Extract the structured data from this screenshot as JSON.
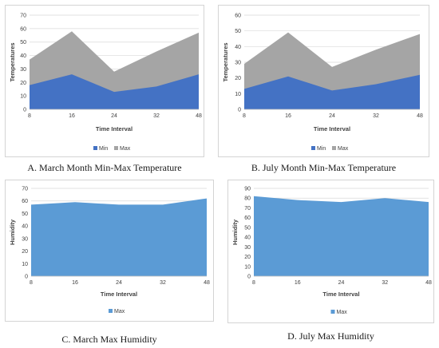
{
  "colors": {
    "min": "#4472c4",
    "max": "#a5a5a5",
    "humidity": "#5b9bd5"
  },
  "chart_data": [
    {
      "type": "area",
      "caption": "A. March Month Min-Max Temperature",
      "x": [
        8,
        16,
        24,
        32,
        48
      ],
      "xlabel": "Time Interval",
      "ylabel": "Temperatures",
      "ylim": [
        0,
        70
      ],
      "yticks": [
        0,
        10,
        20,
        30,
        40,
        50,
        60,
        70
      ],
      "stacked": false,
      "series": [
        {
          "name": "Max",
          "values": [
            37,
            58,
            28,
            43,
            57
          ]
        },
        {
          "name": "Min",
          "values": [
            18,
            26,
            13,
            17,
            26
          ]
        }
      ],
      "legend": [
        "Min",
        "Max"
      ],
      "legend_position": "bottom"
    },
    {
      "type": "area",
      "caption": "B. July Month Min-Max Temperature",
      "x": [
        8,
        16,
        24,
        32,
        48
      ],
      "xlabel": "Time Interval",
      "ylabel": "Temperatures",
      "ylim": [
        0,
        60
      ],
      "yticks": [
        0,
        10,
        20,
        30,
        40,
        50,
        60
      ],
      "stacked": false,
      "series": [
        {
          "name": "Max",
          "values": [
            29,
            49,
            27,
            38,
            48
          ]
        },
        {
          "name": "Min",
          "values": [
            13,
            21,
            12,
            16,
            22
          ]
        }
      ],
      "legend": [
        "Min",
        "Max"
      ],
      "legend_position": "bottom"
    },
    {
      "type": "area",
      "caption": "C. March Max Humidity",
      "x": [
        8,
        16,
        24,
        32,
        48
      ],
      "xlabel": "Time Interval",
      "ylabel": "Humidity",
      "ylim": [
        0,
        70
      ],
      "yticks": [
        0,
        10,
        20,
        30,
        40,
        50,
        60,
        70
      ],
      "stacked": false,
      "series": [
        {
          "name": "Max",
          "values": [
            57,
            59,
            57,
            57,
            62
          ]
        }
      ],
      "legend": [
        "Max"
      ],
      "legend_position": "bottom"
    },
    {
      "type": "area",
      "caption": "D. July Max Humidity",
      "x": [
        8,
        16,
        24,
        32,
        48
      ],
      "xlabel": "Time Interval",
      "ylabel": "Humidity",
      "ylim": [
        0,
        90
      ],
      "yticks": [
        0,
        10,
        20,
        30,
        40,
        50,
        60,
        70,
        80,
        90
      ],
      "stacked": false,
      "series": [
        {
          "name": "Max",
          "values": [
            82,
            78,
            76,
            80,
            76
          ]
        }
      ],
      "legend": [
        "Max"
      ],
      "legend_position": "bottom"
    }
  ]
}
